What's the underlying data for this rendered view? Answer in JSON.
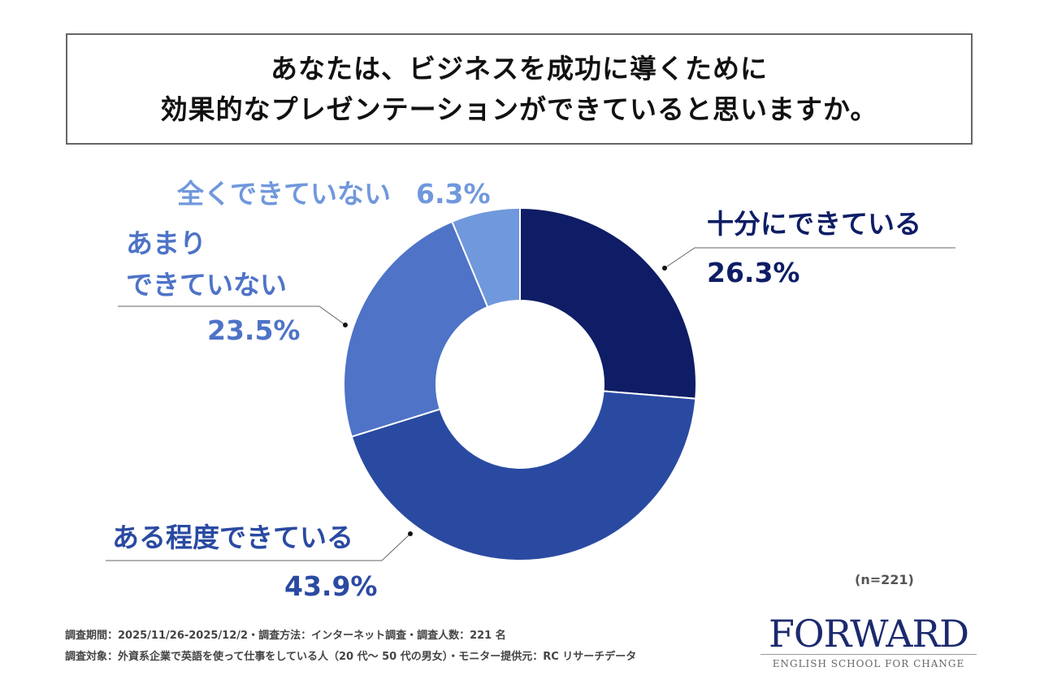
{
  "chart_data": {
    "type": "pie",
    "donut": true,
    "title": [
      "あなたは、ビジネスを成功に導くために",
      "効果的なプレゼンテーションができていると思いますか。"
    ],
    "slices": [
      {
        "label": "十分にできている",
        "value": 26.3,
        "value_label": "26.3%",
        "color": "#0e1d65"
      },
      {
        "label": "ある程度できている",
        "value": 43.9,
        "value_label": "43.9%",
        "color": "#2a4aa2"
      },
      {
        "label": "あまりできていない",
        "label_lines": [
          "あまり",
          "できていない"
        ],
        "value": 23.5,
        "value_label": "23.5%",
        "color": "#4e73c7"
      },
      {
        "label": "全くできていない",
        "value": 6.3,
        "value_label": "6.3%",
        "color": "#7098dc"
      }
    ],
    "sample_size": "(n=221)"
  },
  "footer": {
    "line1": "調査期間：2025/11/26-2025/12/2・調査方法：インターネット調査・調査人数：221 名",
    "line2": "調査対象：外資系企業で英語を使って仕事をしている人（20 代～ 50 代の男女）・モニター提供元：RC リサーチデータ"
  },
  "logo": {
    "name": "FORWARD",
    "tagline": "ENGLISH SCHOOL FOR CHANGE"
  }
}
